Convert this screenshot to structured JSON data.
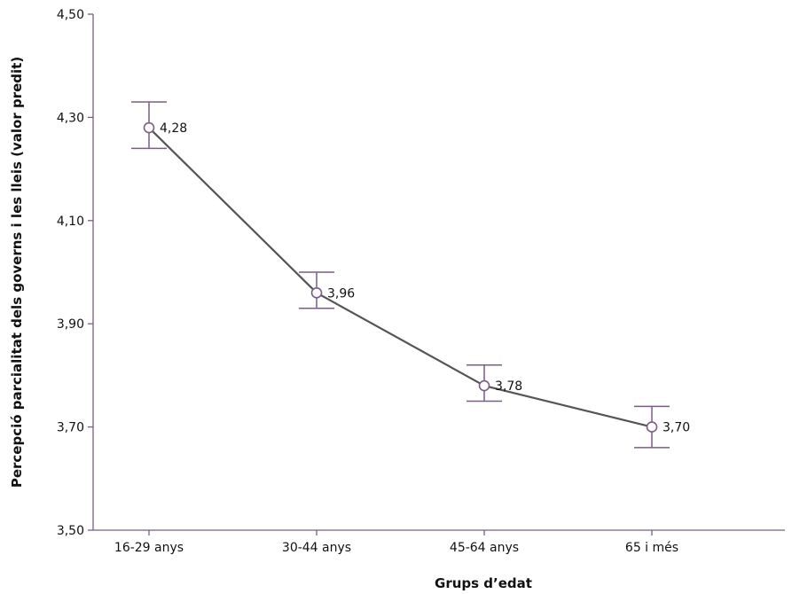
{
  "chart_data": {
    "type": "line",
    "categories": [
      "16-29 anys",
      "30-44 anys",
      "45-64 anys",
      "65 i més"
    ],
    "series": [
      {
        "values": [
          4.28,
          3.96,
          3.78,
          3.7
        ],
        "labels": [
          "4,28",
          "3,96",
          "3,78",
          "3,70"
        ],
        "error_low": [
          4.24,
          3.93,
          3.75,
          3.66
        ],
        "error_high": [
          4.33,
          4.0,
          3.82,
          3.74
        ]
      }
    ],
    "xlabel": "Grups d’edat",
    "ylabel": "Percepció parcialitat dels governs i les lleis (valor predit)",
    "ylim": [
      3.5,
      4.5
    ],
    "yticks": [
      3.5,
      3.7,
      3.9,
      4.1,
      4.3,
      4.5
    ],
    "ytick_labels": [
      "3,50",
      "3,70",
      "3,90",
      "4,10",
      "4,30",
      "4,50"
    ],
    "grid": false,
    "colors": {
      "axis": "#7b5c86",
      "line": "#555555",
      "marker": "#7b5c86",
      "error_bar": "#7b5c86"
    }
  }
}
